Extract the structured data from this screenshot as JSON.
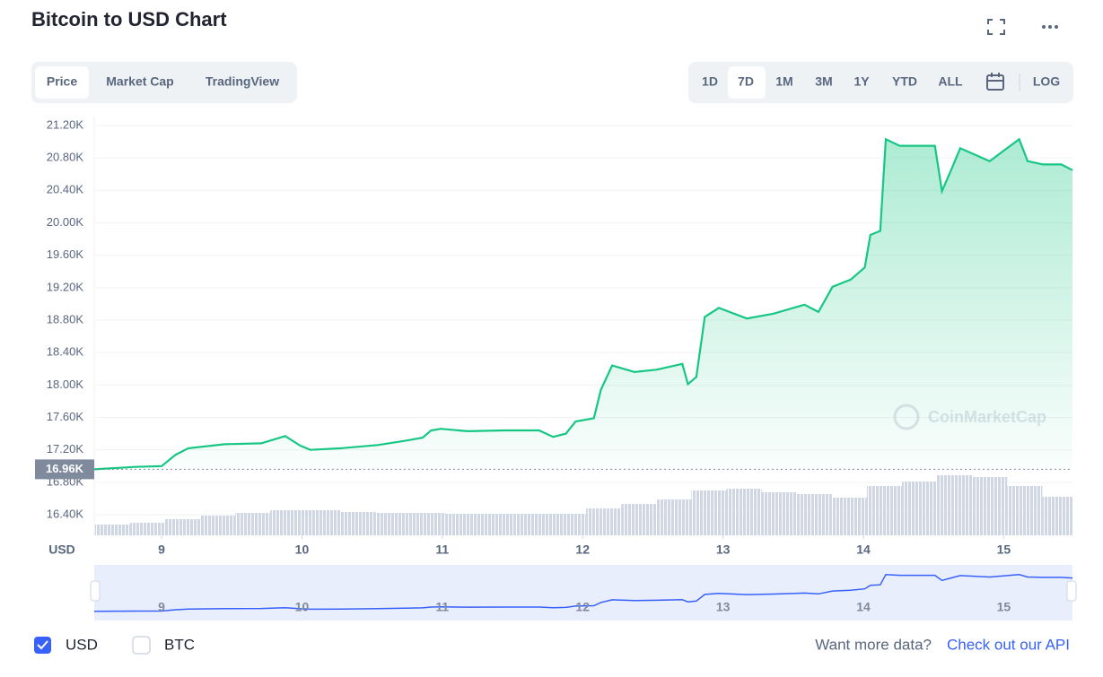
{
  "header": {
    "title": "Bitcoin to USD Chart"
  },
  "view_tabs": [
    "Price",
    "Market Cap",
    "TradingView"
  ],
  "range_buttons": [
    "1D",
    "7D",
    "1M",
    "3M",
    "1Y",
    "YTD",
    "ALL"
  ],
  "scale_button": "LOG",
  "watermark": "CoinMarketCap",
  "currency_toggles": [
    {
      "label": "USD",
      "checked": true
    },
    {
      "label": "BTC",
      "checked": false
    }
  ],
  "footer": {
    "prompt": "Want more data?",
    "link": "Check out our API"
  },
  "chart_data": {
    "type": "line",
    "ylabel": "USD",
    "x": [
      8.52,
      8.81,
      9.0,
      9.1,
      9.19,
      9.45,
      9.71,
      9.88,
      9.99,
      10.06,
      10.28,
      10.54,
      10.73,
      10.86,
      10.92,
      10.99,
      11.18,
      11.44,
      11.69,
      11.79,
      11.88,
      11.95,
      12.08,
      12.13,
      12.21,
      12.37,
      12.53,
      12.71,
      12.75,
      12.81,
      12.87,
      12.97,
      13.17,
      13.36,
      13.58,
      13.68,
      13.78,
      13.91,
      14.01,
      14.05,
      14.12,
      14.16,
      14.26,
      14.51,
      14.56,
      14.63,
      14.69,
      14.9,
      15.11,
      15.17,
      15.28,
      15.41,
      15.49
    ],
    "series": [
      {
        "color": "#16c784",
        "values": [
          16960,
          16990,
          17000,
          17140,
          17220,
          17270,
          17280,
          17370,
          17250,
          17200,
          17220,
          17260,
          17310,
          17350,
          17440,
          17460,
          17430,
          17440,
          17440,
          17360,
          17400,
          17550,
          17590,
          17940,
          18240,
          18160,
          18190,
          18260,
          18010,
          18100,
          18840,
          18950,
          18820,
          18880,
          18990,
          18900,
          19210,
          19300,
          19450,
          19850,
          19900,
          21030,
          20950,
          20950,
          20390,
          20670,
          20920,
          20760,
          21030,
          20760,
          20720,
          20720,
          20650
        ]
      }
    ],
    "xlim": [
      8.52,
      15.49
    ],
    "xticks": [
      9,
      10,
      11,
      12,
      13,
      14,
      15
    ],
    "ylim": [
      16146,
      21310
    ],
    "yticks": [
      {
        "value": 16400,
        "label": "16.40K"
      },
      {
        "value": 16800,
        "label": "16.80K"
      },
      {
        "value": 17200,
        "label": "17.20K"
      },
      {
        "value": 17600,
        "label": "17.60K"
      },
      {
        "value": 18000,
        "label": "18.00K"
      },
      {
        "value": 18400,
        "label": "18.40K"
      },
      {
        "value": 18800,
        "label": "18.80K"
      },
      {
        "value": 19200,
        "label": "19.20K"
      },
      {
        "value": 19600,
        "label": "19.60K"
      },
      {
        "value": 20000,
        "label": "20.00K"
      },
      {
        "value": 20400,
        "label": "20.40K"
      },
      {
        "value": 20800,
        "label": "20.80K"
      },
      {
        "value": 21200,
        "label": "21.20K"
      }
    ],
    "grid": true,
    "open_price": {
      "value": 16960,
      "label": "16.96K"
    },
    "volume": {
      "x": [
        8.65,
        8.9,
        9.15,
        9.4,
        9.65,
        9.9,
        10.15,
        10.4,
        10.65,
        10.9,
        11.15,
        11.4,
        11.65,
        11.9,
        12.15,
        12.4,
        12.65,
        12.9,
        13.15,
        13.4,
        13.65,
        13.9,
        14.15,
        14.4,
        14.65,
        14.9,
        15.15,
        15.4
      ],
      "values": [
        12,
        14,
        18,
        22,
        25,
        28,
        28,
        26,
        25,
        25,
        24,
        24,
        24,
        24,
        30,
        35,
        40,
        50,
        52,
        48,
        46,
        42,
        55,
        60,
        67,
        65,
        55,
        43
      ],
      "ylim": [
        0,
        100
      ],
      "color": "#cfd6e4"
    }
  }
}
